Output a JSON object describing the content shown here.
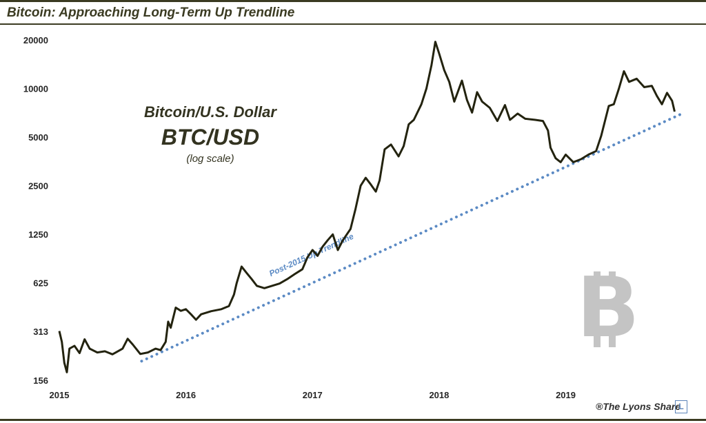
{
  "header": {
    "title": "Bitcoin: Approaching Long-Term Up Trendline"
  },
  "annotation": {
    "line1": "Bitcoin/U.S. Dollar",
    "line2": "BTC/USD",
    "line3": "(log scale)"
  },
  "credit": {
    "text": "®The Lyons Share",
    "logo_letter": "L"
  },
  "colors": {
    "price_line": "#23230f",
    "trendline": "#5b8ac4",
    "watermark": "#c4c4c4"
  },
  "watermark_icon": "bitcoin-icon",
  "chart_data": {
    "type": "line",
    "title": "Bitcoin: Approaching Long-Term Up Trendline",
    "y_scale": "log",
    "ylim": [
      156,
      20000
    ],
    "yticks": [
      "20000",
      "10000",
      "5000",
      "2500",
      "1250",
      "625",
      "313",
      "156"
    ],
    "xticks": [
      "2015",
      "2016",
      "2017",
      "2018",
      "2019"
    ],
    "xlim": [
      2015.0,
      2019.95
    ],
    "series": [
      {
        "name": "BTC/USD",
        "points": [
          [
            2015.0,
            315
          ],
          [
            2015.02,
            270
          ],
          [
            2015.04,
            200
          ],
          [
            2015.06,
            175
          ],
          [
            2015.08,
            245
          ],
          [
            2015.12,
            255
          ],
          [
            2015.16,
            230
          ],
          [
            2015.2,
            280
          ],
          [
            2015.24,
            245
          ],
          [
            2015.3,
            232
          ],
          [
            2015.36,
            236
          ],
          [
            2015.42,
            226
          ],
          [
            2015.5,
            245
          ],
          [
            2015.54,
            282
          ],
          [
            2015.58,
            260
          ],
          [
            2015.64,
            227
          ],
          [
            2015.7,
            232
          ],
          [
            2015.76,
            245
          ],
          [
            2015.8,
            240
          ],
          [
            2015.84,
            270
          ],
          [
            2015.86,
            360
          ],
          [
            2015.88,
            330
          ],
          [
            2015.92,
            440
          ],
          [
            2015.96,
            420
          ],
          [
            2016.0,
            430
          ],
          [
            2016.04,
            400
          ],
          [
            2016.08,
            370
          ],
          [
            2016.12,
            400
          ],
          [
            2016.2,
            418
          ],
          [
            2016.28,
            430
          ],
          [
            2016.34,
            450
          ],
          [
            2016.38,
            530
          ],
          [
            2016.4,
            620
          ],
          [
            2016.44,
            790
          ],
          [
            2016.48,
            720
          ],
          [
            2016.52,
            660
          ],
          [
            2016.56,
            600
          ],
          [
            2016.62,
            580
          ],
          [
            2016.68,
            600
          ],
          [
            2016.74,
            620
          ],
          [
            2016.8,
            660
          ],
          [
            2016.86,
            710
          ],
          [
            2016.92,
            760
          ],
          [
            2016.96,
            900
          ],
          [
            2017.0,
            1000
          ],
          [
            2017.04,
            920
          ],
          [
            2017.08,
            1050
          ],
          [
            2017.12,
            1150
          ],
          [
            2017.16,
            1250
          ],
          [
            2017.2,
            1000
          ],
          [
            2017.24,
            1150
          ],
          [
            2017.3,
            1350
          ],
          [
            2017.34,
            1800
          ],
          [
            2017.38,
            2500
          ],
          [
            2017.42,
            2800
          ],
          [
            2017.46,
            2550
          ],
          [
            2017.5,
            2300
          ],
          [
            2017.53,
            2700
          ],
          [
            2017.57,
            4200
          ],
          [
            2017.62,
            4500
          ],
          [
            2017.68,
            3800
          ],
          [
            2017.72,
            4400
          ],
          [
            2017.76,
            6000
          ],
          [
            2017.8,
            6400
          ],
          [
            2017.86,
            8000
          ],
          [
            2017.9,
            10000
          ],
          [
            2017.94,
            14000
          ],
          [
            2017.97,
            19500
          ],
          [
            2018.0,
            16500
          ],
          [
            2018.04,
            13000
          ],
          [
            2018.08,
            11000
          ],
          [
            2018.12,
            8300
          ],
          [
            2018.18,
            11200
          ],
          [
            2018.22,
            8500
          ],
          [
            2018.26,
            7100
          ],
          [
            2018.3,
            9500
          ],
          [
            2018.34,
            8300
          ],
          [
            2018.4,
            7600
          ],
          [
            2018.46,
            6300
          ],
          [
            2018.52,
            7900
          ],
          [
            2018.56,
            6400
          ],
          [
            2018.62,
            7000
          ],
          [
            2018.68,
            6500
          ],
          [
            2018.76,
            6400
          ],
          [
            2018.82,
            6300
          ],
          [
            2018.86,
            5500
          ],
          [
            2018.88,
            4300
          ],
          [
            2018.92,
            3700
          ],
          [
            2018.96,
            3500
          ],
          [
            2019.0,
            3900
          ],
          [
            2019.06,
            3500
          ],
          [
            2019.12,
            3650
          ],
          [
            2019.18,
            3900
          ],
          [
            2019.24,
            4100
          ],
          [
            2019.28,
            5100
          ],
          [
            2019.34,
            7800
          ],
          [
            2019.38,
            8000
          ],
          [
            2019.42,
            10000
          ],
          [
            2019.46,
            12800
          ],
          [
            2019.5,
            11000
          ],
          [
            2019.56,
            11500
          ],
          [
            2019.62,
            10200
          ],
          [
            2019.68,
            10400
          ],
          [
            2019.72,
            9000
          ],
          [
            2019.76,
            8000
          ],
          [
            2019.8,
            9400
          ],
          [
            2019.84,
            8400
          ],
          [
            2019.86,
            7200
          ]
        ]
      },
      {
        "name": "Post-2015 Up Trendline",
        "style": "dotted",
        "points": [
          [
            2015.65,
            205
          ],
          [
            2019.92,
            7000
          ]
        ]
      }
    ],
    "annotations": [
      {
        "text": "Post-2015 Up Trendline",
        "x": 2017.0,
        "y": 900
      }
    ],
    "grid": false,
    "legend": "none"
  }
}
